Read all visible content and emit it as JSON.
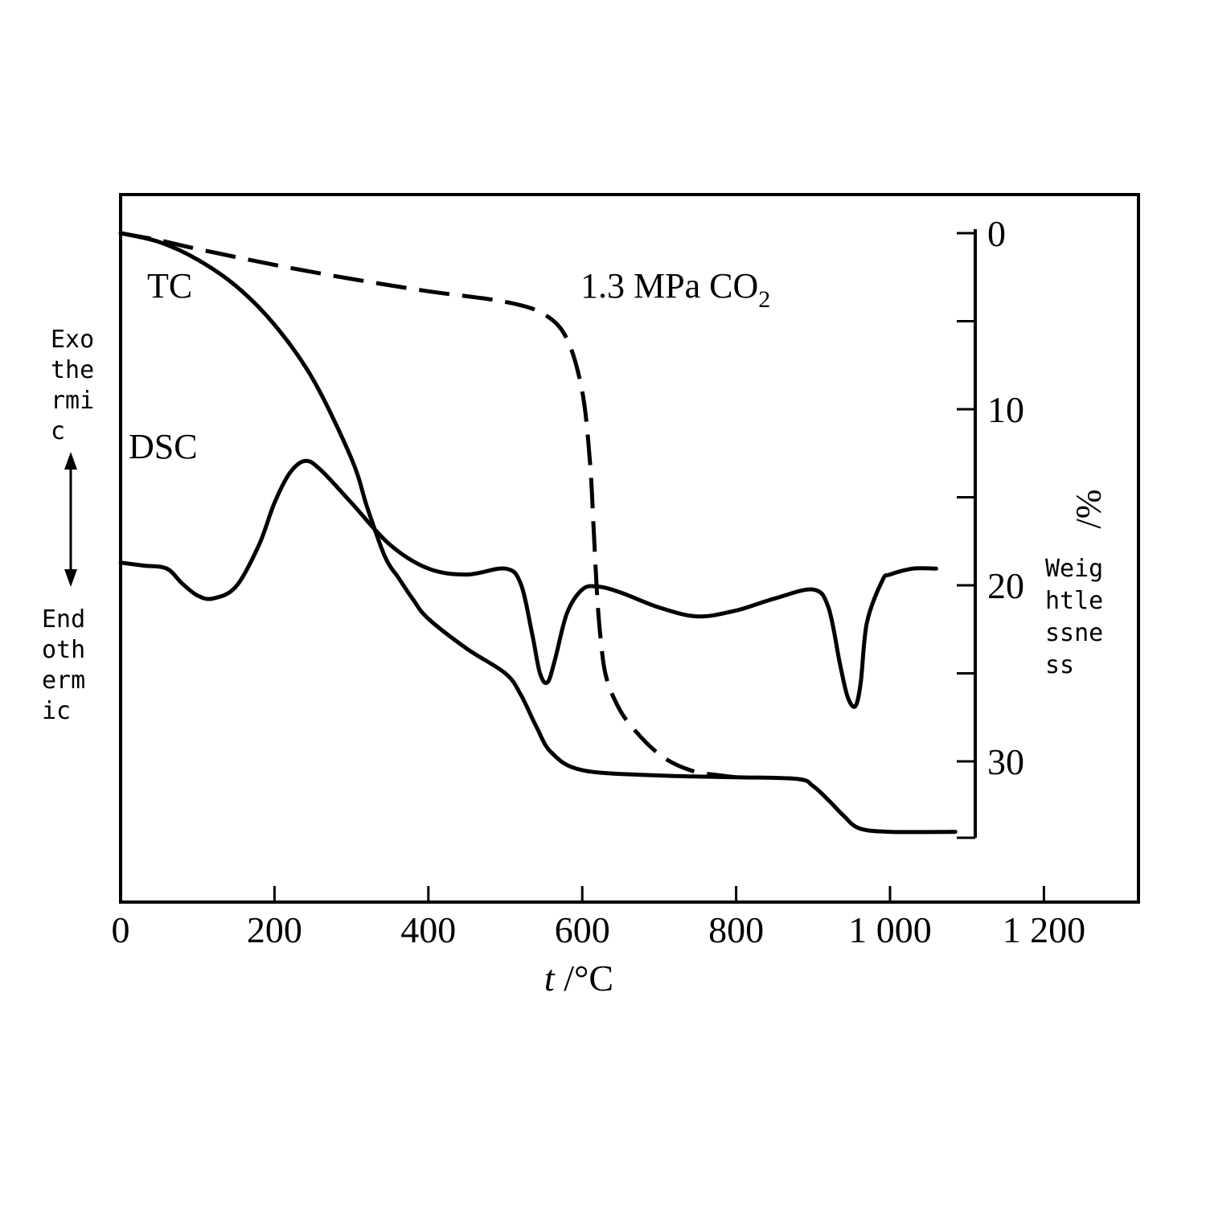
{
  "chart_data": {
    "type": "line",
    "xlabel_var": "t",
    "xlabel_unit": " /°C",
    "xlim": [
      0,
      1350
    ],
    "x_ticks": [
      0,
      200,
      400,
      600,
      800,
      1000,
      1200
    ],
    "x_tick_labels": [
      "0",
      "200",
      "400",
      "600",
      "800",
      "1 000",
      "1 200"
    ],
    "weight_axis": {
      "ylim": [
        0,
        34
      ],
      "ticks": [
        0,
        5,
        10,
        15,
        20,
        25,
        30
      ],
      "tick_labels": [
        {
          "value": 0,
          "label": "0"
        },
        {
          "value": 10,
          "label": "10"
        },
        {
          "value": 20,
          "label": "20"
        },
        {
          "value": 30,
          "label": "30"
        }
      ],
      "unit_label": "%/",
      "label_lines": [
        "Weig",
        "htle",
        "ssne",
        "ss"
      ]
    },
    "dsc_axis": {
      "exo_label_lines": [
        "Exo",
        "the",
        "rmi",
        "c"
      ],
      "endo_label_lines": [
        "End",
        "oth",
        "erm",
        "ic"
      ]
    },
    "series": [
      {
        "name": "TC",
        "axis": "weight",
        "style": "solid",
        "x": [
          0,
          50,
          100,
          150,
          200,
          250,
          300,
          320,
          340,
          350,
          360,
          380,
          400,
          450,
          500,
          520,
          540,
          560,
          600,
          700,
          800,
          880,
          900,
          920,
          940,
          960,
          1000,
          1085
        ],
        "y": [
          0.0,
          0.5,
          1.5,
          3.0,
          5.2,
          8.3,
          12.8,
          15.5,
          18.0,
          18.9,
          19.5,
          20.8,
          21.9,
          23.6,
          25.0,
          26.2,
          28.0,
          29.5,
          30.5,
          30.8,
          30.9,
          31.0,
          31.4,
          32.2,
          33.1,
          33.8,
          34.0,
          34.0
        ]
      },
      {
        "name": "1.3 MPa CO₂",
        "axis": "weight",
        "style": "dashed",
        "x": [
          0,
          50,
          100,
          200,
          300,
          400,
          500,
          550,
          580,
          600,
          610,
          615,
          620,
          625,
          630,
          640,
          660,
          700,
          740,
          780,
          800
        ],
        "y": [
          0.0,
          0.4,
          0.9,
          1.8,
          2.6,
          3.3,
          3.9,
          4.6,
          6.0,
          9.0,
          13.0,
          17.0,
          21.0,
          23.5,
          25.0,
          26.3,
          27.8,
          29.6,
          30.5,
          30.8,
          30.9
        ]
      },
      {
        "name": "DSC",
        "axis": "dsc",
        "style": "solid",
        "x": [
          0,
          30,
          60,
          80,
          100,
          120,
          150,
          180,
          200,
          220,
          240,
          260,
          300,
          350,
          400,
          450,
          500,
          520,
          535,
          545,
          555,
          565,
          580,
          600,
          620,
          650,
          700,
          750,
          800,
          850,
          900,
          920,
          935,
          945,
          955,
          962,
          970,
          990,
          1000,
          1030,
          1060
        ],
        "y": [
          0.42,
          0.41,
          0.4,
          0.35,
          0.31,
          0.3,
          0.34,
          0.48,
          0.62,
          0.72,
          0.76,
          0.73,
          0.62,
          0.48,
          0.4,
          0.38,
          0.4,
          0.35,
          0.18,
          0.05,
          0.02,
          0.1,
          0.25,
          0.33,
          0.34,
          0.32,
          0.27,
          0.24,
          0.26,
          0.3,
          0.33,
          0.27,
          0.08,
          -0.03,
          -0.06,
          0.02,
          0.22,
          0.36,
          0.38,
          0.4,
          0.4
        ]
      }
    ]
  }
}
